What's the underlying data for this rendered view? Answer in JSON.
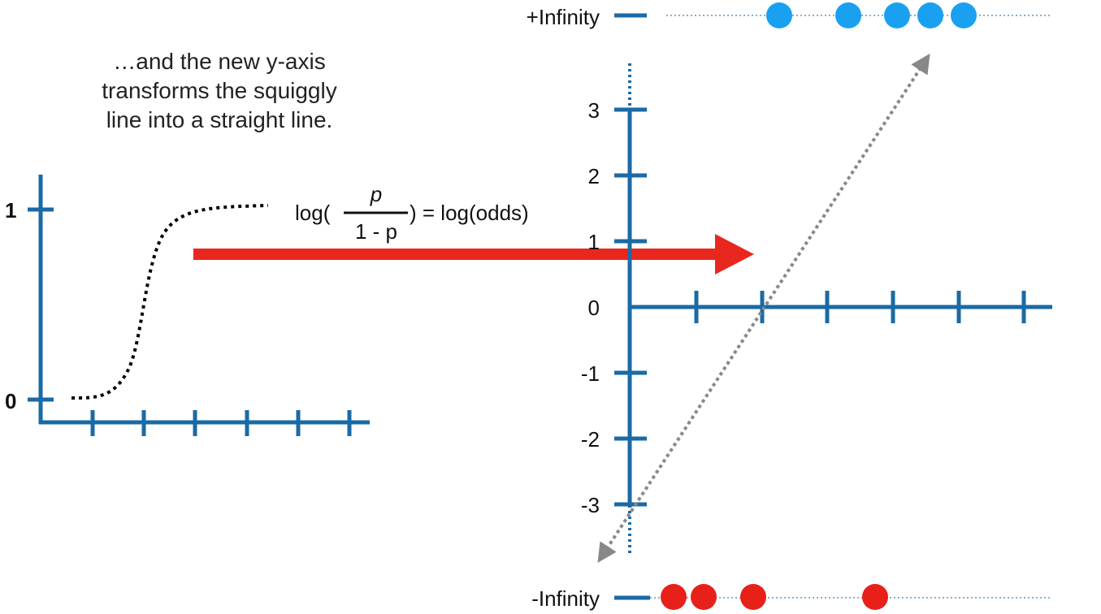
{
  "caption": {
    "lines": [
      "…and the new y-axis",
      "transforms the squiggly",
      "line into a straight line."
    ]
  },
  "left_graph": {
    "y_labels": [
      "1",
      "0"
    ]
  },
  "formula": {
    "prefix": "log(",
    "numerator": "p",
    "denominator": "1 - p",
    "suffix": ") = log(odds)"
  },
  "right_graph": {
    "y_ticks": [
      "3",
      "2",
      "1",
      "0",
      "-1",
      "-2",
      "-3"
    ],
    "pos_inf_label": "+Infinity",
    "neg_inf_label": "-Infinity"
  },
  "colors": {
    "axis": "#1a6aa6",
    "arrow": "#e8281e",
    "blue_dot": "#1aa0f0",
    "red_dot": "#e8201a",
    "dashed_line": "#888888",
    "dotted_curve": "#000000"
  }
}
